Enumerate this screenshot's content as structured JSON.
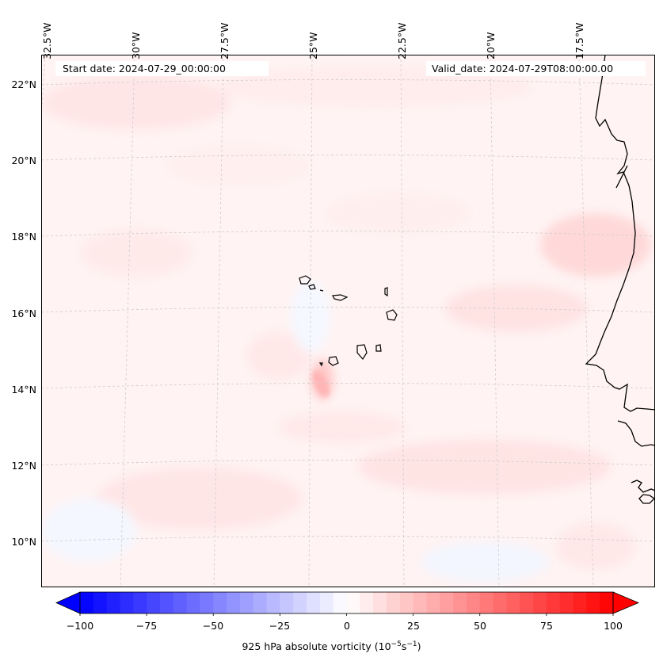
{
  "header": {
    "start_date": "Start date: 2024-07-29_00:00:00",
    "valid_date": "Valid_date: 2024-07-29T08:00:00.00"
  },
  "map": {
    "longitude_labels": [
      "32.5°W",
      "30°W",
      "27.5°W",
      "25°W",
      "22.5°W",
      "20°W",
      "17.5°W"
    ],
    "latitude_labels": [
      "22°N",
      "20°N",
      "18°N",
      "16°N",
      "14°N",
      "12°N",
      "10°N"
    ],
    "field_colors": {
      "positive": "#ff0000",
      "negative": "#0000ff",
      "neutral": "#ffffff"
    }
  },
  "colorbar": {
    "ticks": [
      "−100",
      "−75",
      "−50",
      "−25",
      "0",
      "25",
      "50",
      "75",
      "100"
    ],
    "label_prefix": "925 hPa absolute vorticity (10",
    "label_exp1": "−5",
    "label_mid": "s",
    "label_exp2": "−1",
    "label_suffix": ")"
  }
}
